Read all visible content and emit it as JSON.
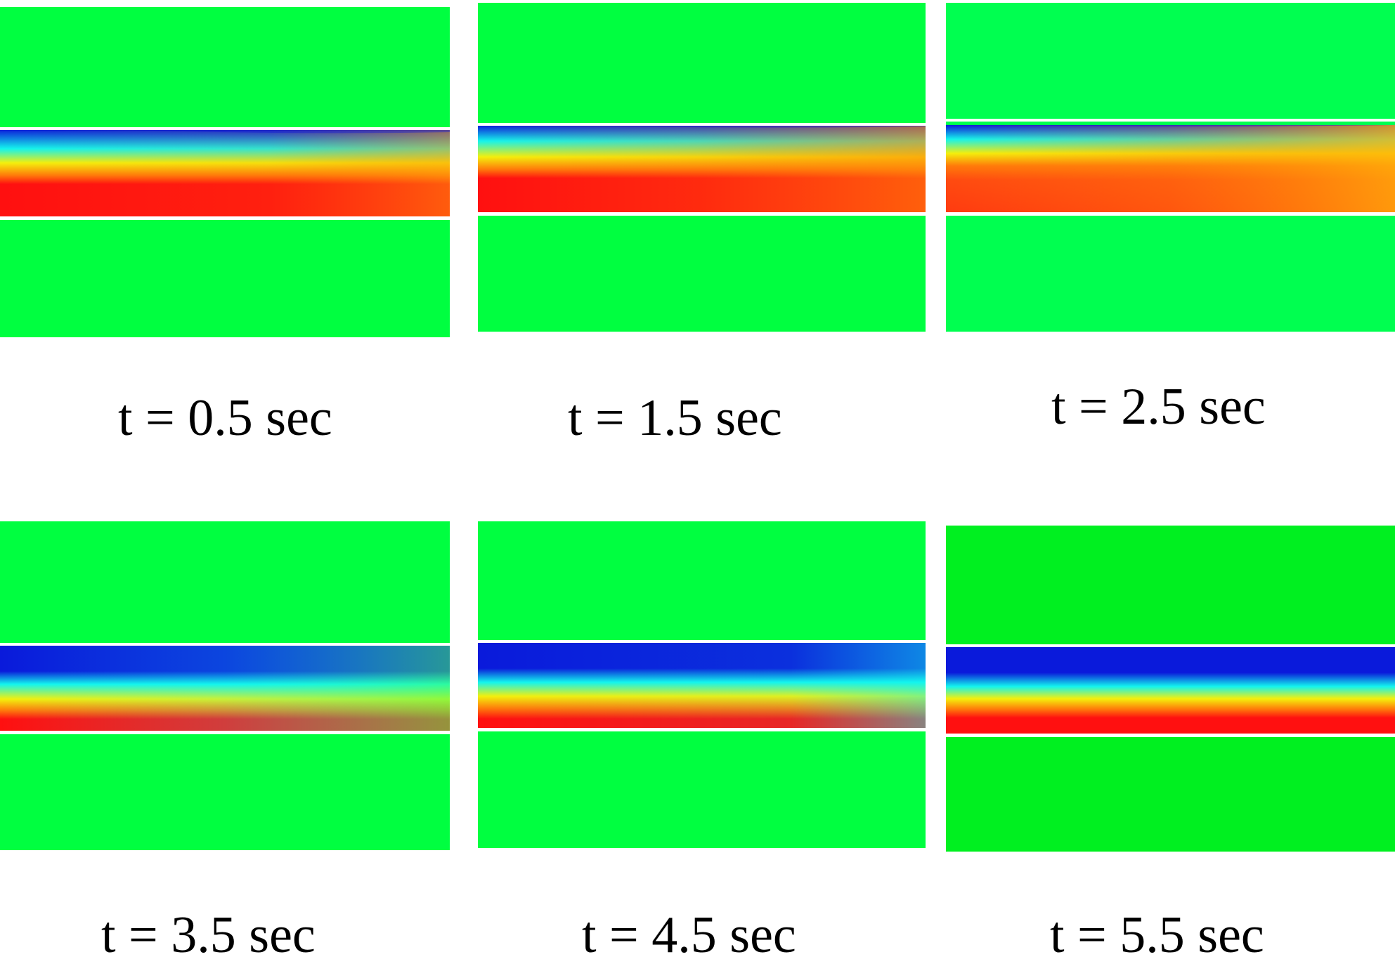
{
  "figure": {
    "panels": [
      {
        "id": "p1",
        "caption": "t = 0.5 sec",
        "pattern": "early"
      },
      {
        "id": "p2",
        "caption": "t = 1.5 sec",
        "pattern": "mid"
      },
      {
        "id": "p3",
        "caption": "t = 2.5 sec",
        "pattern": "late-orange"
      },
      {
        "id": "p4",
        "caption": "t = 3.5 sec",
        "pattern": "reverse-a"
      },
      {
        "id": "p5",
        "caption": "t = 4.5 sec",
        "pattern": "reverse-b"
      },
      {
        "id": "p6",
        "caption": "t = 5.5 sec",
        "pattern": "reverse-c"
      }
    ],
    "colors": {
      "background_green": "#00ff40",
      "blue": "#0a1adb",
      "cyan": "#13f5ee",
      "yellow": "#f4f00c",
      "orange": "#ff7a0a",
      "red": "#ff1010",
      "separator": "#ffffff"
    }
  }
}
